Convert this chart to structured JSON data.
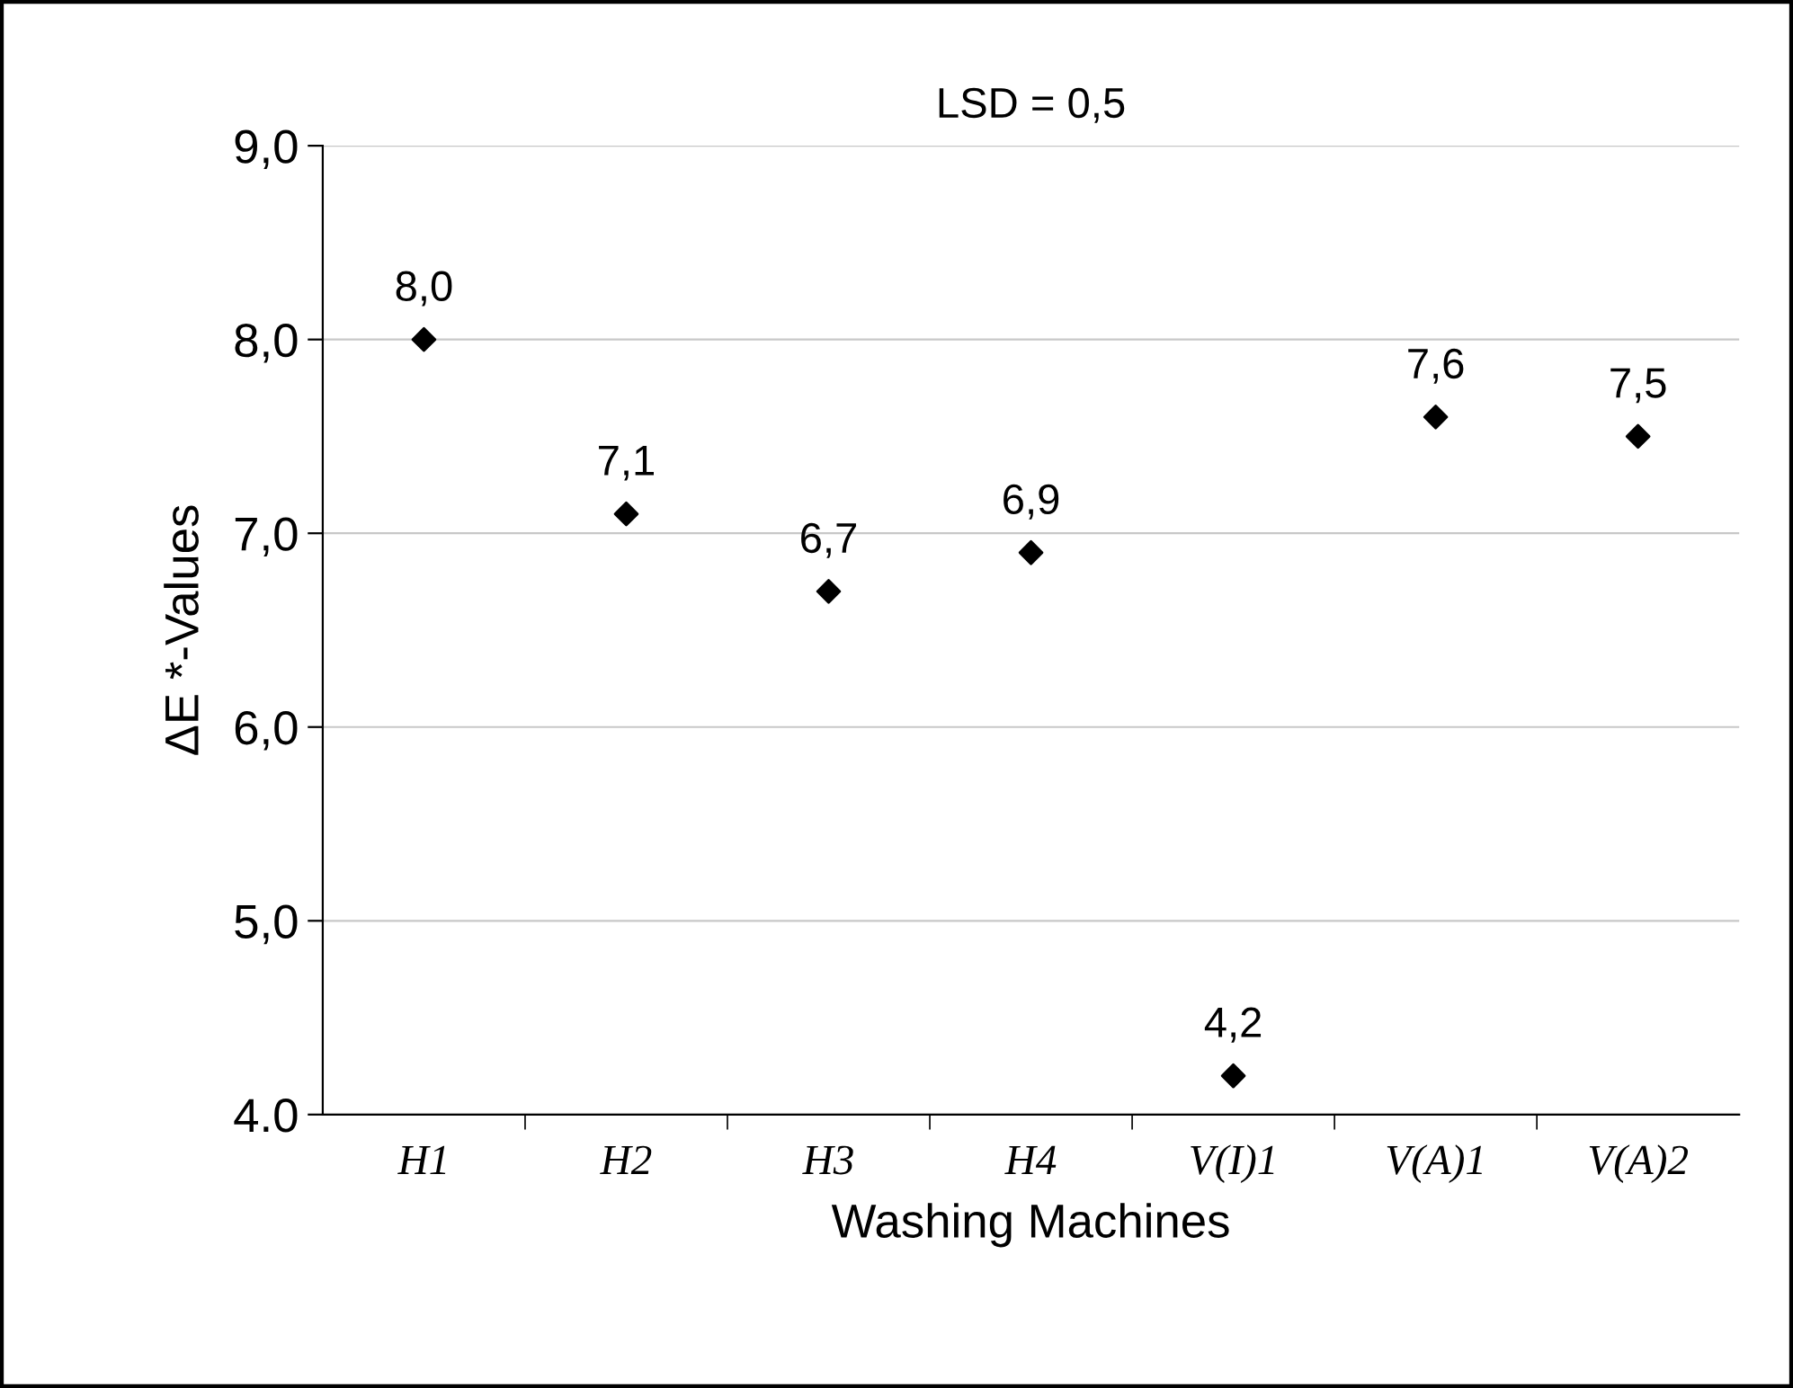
{
  "chart_data": {
    "type": "scatter",
    "xlabel": "Washing Machines",
    "ylabel": "ΔE *-Values",
    "categories": [
      "H1",
      "H2",
      "H3",
      "H4",
      "V(I)1",
      "V(A)1",
      "V(A)2"
    ],
    "values": [
      8.0,
      7.1,
      6.7,
      6.9,
      4.2,
      7.6,
      7.5
    ],
    "value_labels": [
      "8,0",
      "7,1",
      "6,7",
      "6,9",
      "4,2",
      "7,6",
      "7,5"
    ],
    "color": "#000000",
    "marker": "diamond",
    "ylim": [
      4,
      9
    ],
    "yticks": [
      {
        "value": 4,
        "label": "4.0"
      },
      {
        "value": 5,
        "label": "5,0"
      },
      {
        "value": 6,
        "label": "6,0"
      },
      {
        "value": 7,
        "label": "7,0"
      },
      {
        "value": 8,
        "label": "8,0"
      },
      {
        "value": 9,
        "label": "9,0"
      }
    ],
    "grid": "y",
    "legend": false,
    "annotations": [
      "LSD = 0,5"
    ]
  }
}
